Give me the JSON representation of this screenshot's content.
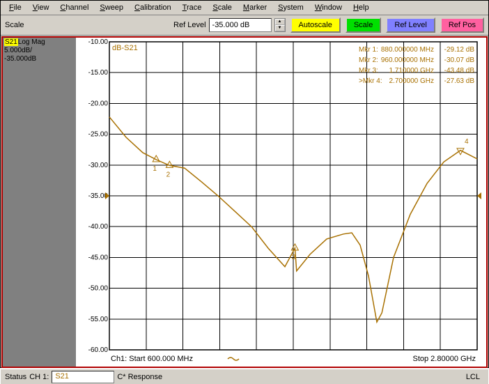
{
  "menubar": [
    "File",
    "View",
    "Channel",
    "Sweep",
    "Calibration",
    "Trace",
    "Scale",
    "Marker",
    "System",
    "Window",
    "Help"
  ],
  "toolbar": {
    "section_label": "Scale",
    "ref_label": "Ref Level",
    "ref_value": "-35.000 dB",
    "buttons": {
      "autoscale": "Autoscale",
      "scale": "Scale",
      "reflevel": "Ref Level",
      "refpos": "Ref Pos"
    }
  },
  "side": {
    "trace_id": "S21",
    "format": "Log Mag",
    "scale": "5.000dB/",
    "ref": "-35.000dB"
  },
  "plot": {
    "type": "line",
    "title": "dB-S21",
    "colors": {
      "trace": "#a87000",
      "grid": "#000000",
      "background": "#ffffff",
      "ref_arrow": "#a87000"
    },
    "y_axis": {
      "min": -60,
      "max": -10,
      "step": 5,
      "labels": [
        "-10.00",
        "-15.00",
        "-20.00",
        "-25.00",
        "-30.00",
        "-35.00",
        "-40.00",
        "-45.00",
        "-50.00",
        "-55.00",
        "-60.00"
      ]
    },
    "x_axis": {
      "start_freq": 600.0,
      "stop_freq": 2800.0,
      "unit_start": "MHz",
      "unit_stop": "GHz",
      "ndiv": 10,
      "start_label": "Ch1: Start  600.000 MHz",
      "stop_label": "Stop  2.80000 GHz"
    },
    "ref_level": -35.0,
    "series": [
      [
        600,
        -22.2
      ],
      [
        700,
        -25.5
      ],
      [
        800,
        -28.0
      ],
      [
        880,
        -29.12
      ],
      [
        960,
        -30.07
      ],
      [
        1050,
        -30.5
      ],
      [
        1150,
        -32.7
      ],
      [
        1250,
        -35.0
      ],
      [
        1350,
        -37.5
      ],
      [
        1450,
        -40.0
      ],
      [
        1550,
        -43.5
      ],
      [
        1650,
        -46.5
      ],
      [
        1710,
        -43.48
      ],
      [
        1720,
        -47.2
      ],
      [
        1800,
        -44.5
      ],
      [
        1900,
        -42.0
      ],
      [
        2000,
        -41.2
      ],
      [
        2050,
        -41.0
      ],
      [
        2100,
        -43.0
      ],
      [
        2150,
        -48.0
      ],
      [
        2200,
        -55.5
      ],
      [
        2230,
        -54.0
      ],
      [
        2300,
        -45.0
      ],
      [
        2400,
        -38.0
      ],
      [
        2500,
        -33.0
      ],
      [
        2600,
        -29.5
      ],
      [
        2700,
        -27.63
      ],
      [
        2750,
        -28.3
      ],
      [
        2800,
        -29.0
      ]
    ],
    "markers": [
      {
        "n": 1,
        "label": "Mkr  1:",
        "freq": "880.000000 MHz",
        "val": "-29.12 dB",
        "x": 880,
        "y": -29.12,
        "shape": "up"
      },
      {
        "n": 2,
        "label": "Mkr  2:",
        "freq": "960.000000 MHz",
        "val": "-30.07 dB",
        "x": 960,
        "y": -30.07,
        "shape": "up"
      },
      {
        "n": 3,
        "label": "Mkr  3:",
        "freq": "1.710000 GHz",
        "val": "-43.48 dB",
        "x": 1710,
        "y": -43.48,
        "shape": "up"
      },
      {
        "n": 4,
        "label": ">Mkr  4:",
        "freq": "2.700000 GHz",
        "val": "-27.63 dB",
        "x": 2700,
        "y": -27.63,
        "shape": "down"
      }
    ]
  },
  "status": {
    "label": "Status",
    "ch": "CH 1:",
    "s21": "S21",
    "resp": "C* Response",
    "lcl": "LCL"
  }
}
